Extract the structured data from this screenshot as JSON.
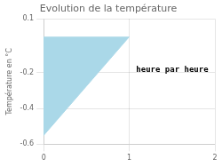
{
  "chart_data": {
    "type": "area",
    "title": "Evolution de la température",
    "y_label": "Température en °C",
    "annotations": [
      {
        "text": "heure par heure",
        "x": 1.08,
        "y": -0.185
      }
    ],
    "x": [
      0,
      0,
      1
    ],
    "values": [
      0,
      -0.55,
      0
    ],
    "color": "#aad8e8",
    "xlim": [
      0,
      2
    ],
    "xticks": [
      0,
      1,
      2
    ],
    "ylim": [
      -0.6,
      0.1
    ],
    "yticks": [
      -0.6,
      -0.4,
      -0.2,
      0.1
    ],
    "grid": true
  }
}
